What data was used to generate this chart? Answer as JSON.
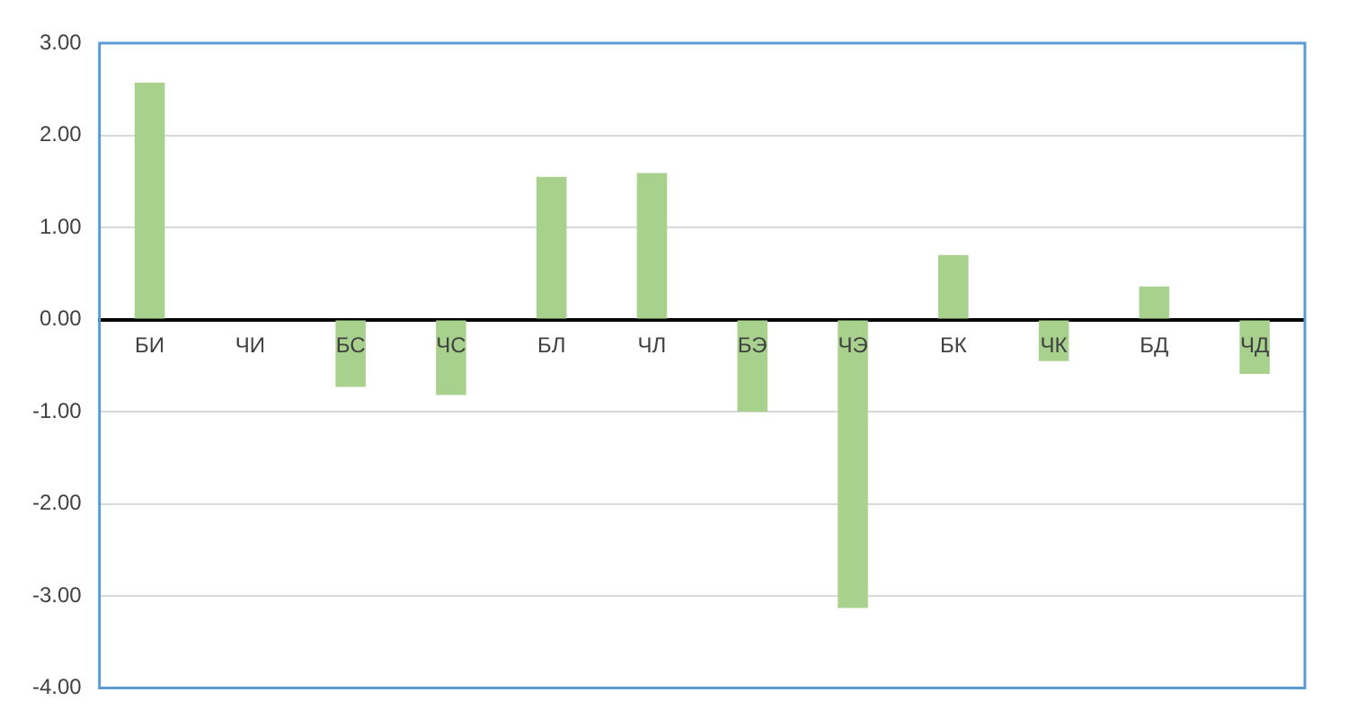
{
  "chart_data": {
    "type": "bar",
    "categories": [
      "БИ",
      "ЧИ",
      "БС",
      "ЧС",
      "БЛ",
      "ЧЛ",
      "БЭ",
      "ЧЭ",
      "БК",
      "ЧК",
      "БД",
      "ЧД"
    ],
    "values": [
      2.57,
      0,
      -0.73,
      -0.82,
      1.55,
      1.59,
      -1.0,
      -3.13,
      0.7,
      -0.45,
      0.36,
      -0.59
    ],
    "color": "#a9d18e",
    "ylim": [
      -4,
      3
    ],
    "yticks": [
      {
        "value": -4,
        "label": "-4.00"
      },
      {
        "value": -3,
        "label": "-3.00"
      },
      {
        "value": -2,
        "label": "-2.00"
      },
      {
        "value": -1,
        "label": "-1.00"
      },
      {
        "value": 0,
        "label": "0.00"
      },
      {
        "value": 1,
        "label": "1.00"
      },
      {
        "value": 2,
        "label": "2.00"
      },
      {
        "value": 3,
        "label": "3.00"
      }
    ],
    "grid": "y",
    "legend": false
  }
}
